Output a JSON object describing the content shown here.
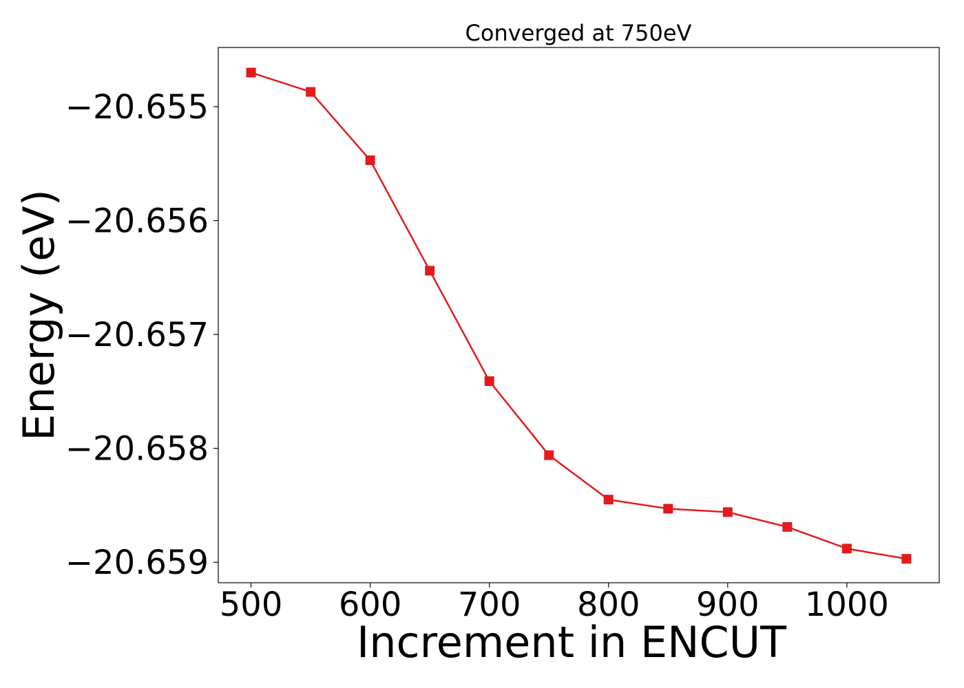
{
  "chart_data": {
    "type": "line",
    "title": "Converged at 750eV",
    "xlabel": "Increment in ENCUT",
    "ylabel": "Energy (eV)",
    "xlim": [
      472.5,
      1077.5
    ],
    "ylim": [
      -20.65918,
      -20.65448
    ],
    "xticks": [
      500,
      600,
      700,
      800,
      900,
      1000
    ],
    "xtick_labels": [
      "500",
      "600",
      "700",
      "800",
      "900",
      "1000"
    ],
    "yticks": [
      -20.655,
      -20.656,
      -20.657,
      -20.658,
      -20.659
    ],
    "ytick_labels": [
      "−20.655",
      "−20.656",
      "−20.657",
      "−20.658",
      "−20.659"
    ],
    "grid": false,
    "legend": "none",
    "series": [
      {
        "color": "#e41a1c",
        "marker": "square",
        "x": [
          500,
          550,
          600,
          650,
          700,
          750,
          800,
          850,
          900,
          950,
          1000,
          1050
        ],
        "y": [
          -20.6547,
          -20.65487,
          -20.65547,
          -20.65644,
          -20.65741,
          -20.65806,
          -20.65845,
          -20.65853,
          -20.65856,
          -20.65869,
          -20.65888,
          -20.65897
        ]
      }
    ]
  }
}
